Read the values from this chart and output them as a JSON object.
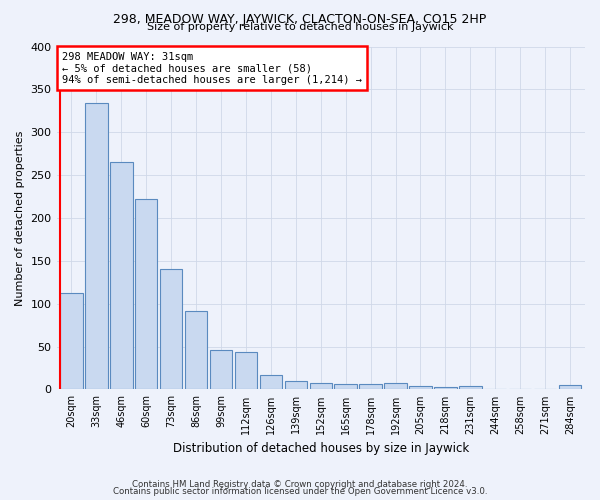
{
  "title": "298, MEADOW WAY, JAYWICK, CLACTON-ON-SEA, CO15 2HP",
  "subtitle": "Size of property relative to detached houses in Jaywick",
  "xlabel": "Distribution of detached houses by size in Jaywick",
  "ylabel": "Number of detached properties",
  "categories": [
    "20sqm",
    "33sqm",
    "46sqm",
    "60sqm",
    "73sqm",
    "86sqm",
    "99sqm",
    "112sqm",
    "126sqm",
    "139sqm",
    "152sqm",
    "165sqm",
    "178sqm",
    "192sqm",
    "205sqm",
    "218sqm",
    "231sqm",
    "244sqm",
    "258sqm",
    "271sqm",
    "284sqm"
  ],
  "values": [
    113,
    334,
    265,
    222,
    141,
    92,
    46,
    44,
    17,
    10,
    7,
    6,
    6,
    8,
    4,
    3,
    4,
    0,
    0,
    0,
    5
  ],
  "bar_color": "#c9d9f0",
  "bar_edge_color": "#5a8abf",
  "annotation_line1": "298 MEADOW WAY: 31sqm",
  "annotation_line2": "← 5% of detached houses are smaller (58)",
  "annotation_line3": "94% of semi-detached houses are larger (1,214) →",
  "footnote1": "Contains HM Land Registry data © Crown copyright and database right 2024.",
  "footnote2": "Contains public sector information licensed under the Open Government Licence v3.0.",
  "bg_color": "#eef2fb",
  "grid_color": "#d0d8e8",
  "ylim": [
    0,
    400
  ],
  "yticks": [
    0,
    50,
    100,
    150,
    200,
    250,
    300,
    350,
    400
  ]
}
